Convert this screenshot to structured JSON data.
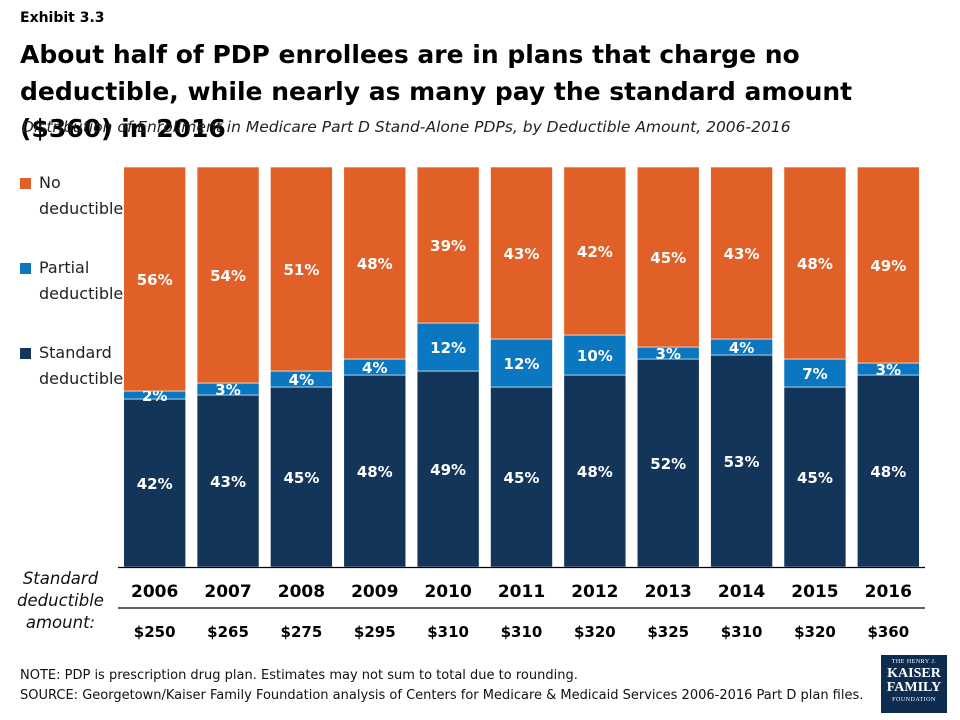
{
  "header": {
    "exhibit": "Exhibit 3.3",
    "title": "About half of PDP enrollees are in plans that charge no deductible, while nearly as many pay the standard amount ($360) in 2016",
    "subtitle": "Distribution of Enrollment in Medicare Part D Stand-Alone PDPs, by Deductible Amount, 2006-2016"
  },
  "legend": [
    {
      "label": "No\ndeductible",
      "color": "#e06027"
    },
    {
      "label": "Partial\ndeductible",
      "color": "#0a77c0"
    },
    {
      "label": "Standard\ndeductible",
      "color": "#14355a"
    }
  ],
  "standard_amount_label": "Standard\ndeductible\namount:",
  "footer": {
    "note": "NOTE: PDP is prescription drug plan. Estimates may not sum to total due to rounding.",
    "source": "SOURCE: Georgetown/Kaiser Family Foundation analysis of Centers for Medicare & Medicaid Services 2006-2016 Part D plan files."
  },
  "logo": {
    "line1": "THE HENRY J.",
    "line2": "KAISER",
    "line3": "FAMILY",
    "line4": "FOUNDATION"
  },
  "colors": {
    "no_deductible": "#e06027",
    "partial": "#0a77c0",
    "standard": "#14355a"
  },
  "chart_data": {
    "type": "bar",
    "stacked": true,
    "percent_stacked": true,
    "categories": [
      "2006",
      "2007",
      "2008",
      "2009",
      "2010",
      "2011",
      "2012",
      "2013",
      "2014",
      "2015",
      "2016"
    ],
    "standard_amounts": [
      "$250",
      "$265",
      "$275",
      "$295",
      "$310",
      "$310",
      "$320",
      "$325",
      "$310",
      "$320",
      "$360"
    ],
    "series": [
      {
        "name": "Standard deductible",
        "values": [
          42,
          43,
          45,
          48,
          49,
          45,
          48,
          52,
          53,
          45,
          48
        ],
        "labels": [
          "42%",
          "43%",
          "45%",
          "48%",
          "49%",
          "45%",
          "48%",
          "52%",
          "53%",
          "45%",
          "48%"
        ]
      },
      {
        "name": "Partial deductible",
        "values": [
          2,
          3,
          4,
          4,
          12,
          12,
          10,
          3,
          4,
          7,
          3
        ],
        "labels": [
          "2%",
          "3%",
          "4%",
          "4%",
          "12%",
          "12%",
          "10%",
          "3%",
          "4%",
          "7%",
          "3%"
        ]
      },
      {
        "name": "No deductible",
        "values": [
          56,
          54,
          51,
          48,
          39,
          43,
          42,
          45,
          43,
          48,
          49
        ],
        "labels": [
          "56%",
          "54%",
          "51%",
          "48%",
          "39%",
          "43%",
          "42%",
          "45%",
          "43%",
          "48%",
          "49%"
        ]
      }
    ],
    "ylim": [
      0,
      100
    ],
    "legend_position": "left"
  }
}
